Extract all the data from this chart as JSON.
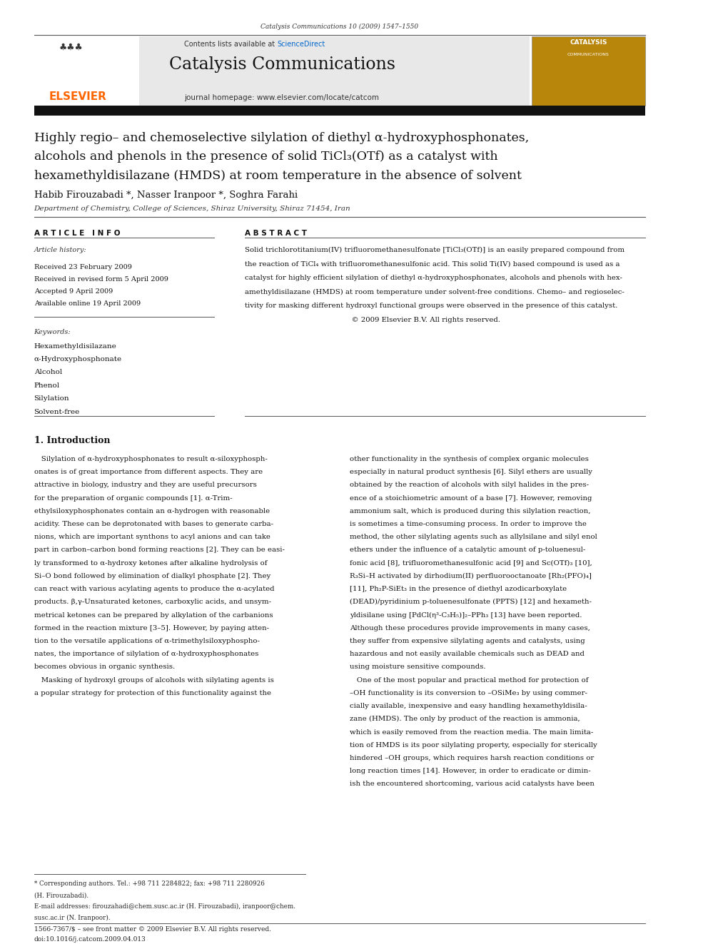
{
  "page_width": 9.92,
  "page_height": 13.23,
  "bg_color": "#ffffff",
  "journal_ref": "Catalysis Communications 10 (2009) 1547–1550",
  "header_bg": "#e8e8e8",
  "sciencedirect_color": "#0066cc",
  "journal_name": "Catalysis Communications",
  "journal_homepage": "journal homepage: www.elsevier.com/locate/catcom",
  "elsevier_color": "#ff6600",
  "title_line1": "Highly regio– and chemoselective silylation of diethyl α-hydroxyphosphonates,",
  "title_line2": "alcohols and phenols in the presence of solid TiCl₃(OTf) as a catalyst with",
  "title_line3": "hexamethyldisilazane (HMDS) at room temperature in the absence of solvent",
  "authors": "Habib Firouzabadi *, Nasser Iranpoor *, Soghra Farahi",
  "affiliation": "Department of Chemistry, College of Sciences, Shiraz University, Shiraz 71454, Iran",
  "article_info_header": "A R T I C L E   I N F O",
  "abstract_header": "A B S T R A C T",
  "article_history_label": "Article history:",
  "history_lines": [
    "Received 23 February 2009",
    "Received in revised form 5 April 2009",
    "Accepted 9 April 2009",
    "Available online 19 April 2009"
  ],
  "keywords_label": "Keywords:",
  "keywords": [
    "Hexamethyldisilazane",
    "α-Hydroxyphosphonate",
    "Alcohol",
    "Phenol",
    "Silylation",
    "Solvent-free"
  ],
  "abstract_lines": [
    "Solid trichlorotitanium(IV) trifluoromethanesulfonate [TiCl₃(OTf)] is an easily prepared compound from",
    "the reaction of TiCl₄ with trifluoromethanesulfonic acid. This solid Ti(IV) based compound is used as a",
    "catalyst for highly efficient silylation of diethyl α-hydroxyphosphonates, alcohols and phenols with hex-",
    "amethyldisilazane (HMDS) at room temperature under solvent-free conditions. Chemo– and regioselec-",
    "tivity for masking different hydroxyl functional groups were observed in the presence of this catalyst.",
    "                                              © 2009 Elsevier B.V. All rights reserved."
  ],
  "intro_header": "1. Introduction",
  "intro_col1_lines": [
    "   Silylation of α-hydroxyphosphonates to result α-siloxyphosph-",
    "onates is of great importance from different aspects. They are",
    "attractive in biology, industry and they are useful precursors",
    "for the preparation of organic compounds [1]. α-Trim-",
    "ethylsiloxyphosphonates contain an α-hydrogen with reasonable",
    "acidity. These can be deprotonated with bases to generate carba-",
    "nions, which are important synthons to acyl anions and can take",
    "part in carbon–carbon bond forming reactions [2]. They can be easi-",
    "ly transformed to α-hydroxy ketones after alkaline hydrolysis of",
    "Si–O bond followed by elimination of dialkyl phosphate [2]. They",
    "can react with various acylating agents to produce the α-acylated",
    "products. β,γ-Unsaturated ketones, carboxylic acids, and unsym-",
    "metrical ketones can be prepared by alkylation of the carbanions",
    "formed in the reaction mixture [3–5]. However, by paying atten-",
    "tion to the versatile applications of α-trimethylsiloxyphospho-",
    "nates, the importance of silylation of α-hydroxyphosphonates",
    "becomes obvious in organic synthesis.",
    "   Masking of hydroxyl groups of alcohols with silylating agents is",
    "a popular strategy for protection of this functionality against the"
  ],
  "intro_col2_lines": [
    "other functionality in the synthesis of complex organic molecules",
    "especially in natural product synthesis [6]. Silyl ethers are usually",
    "obtained by the reaction of alcohols with silyl halides in the pres-",
    "ence of a stoichiometric amount of a base [7]. However, removing",
    "ammonium salt, which is produced during this silylation reaction,",
    "is sometimes a time-consuming process. In order to improve the",
    "method, the other silylating agents such as allylsilane and silyl enol",
    "ethers under the influence of a catalytic amount of p-toluenesul-",
    "fonic acid [8], trifluoromethanesulfonic acid [9] and Sc(OTf)₃ [10],",
    "R₃Si–H activated by dirhodium(II) perfluorooctanoate [Rh₂(PFO)₄]",
    "[11], Ph₂P-SiEt₃ in the presence of diethyl azodicarboxylate",
    "(DEAD)/pyridinium p-toluenesulfonate (PPTS) [12] and hexameth-",
    "yldisilane using [PdCl(η³-C₃H₅)]₂–PPh₃ [13] have been reported.",
    "Although these procedures provide improvements in many cases,",
    "they suffer from expensive silylating agents and catalysts, using",
    "hazardous and not easily available chemicals such as DEAD and",
    "using moisture sensitive compounds.",
    "   One of the most popular and practical method for protection of",
    "–OH functionality is its conversion to –OSiMe₃ by using commer-",
    "cially available, inexpensive and easy handling hexamethyldisila-",
    "zane (HMDS). The only by product of the reaction is ammonia,",
    "which is easily removed from the reaction media. The main limita-",
    "tion of HMDS is its poor silylating property, especially for sterically",
    "hindered –OH groups, which requires harsh reaction conditions or",
    "long reaction times [14]. However, in order to eradicate or dimin-",
    "ish the encountered shortcoming, various acid catalysts have been"
  ],
  "footnote_lines": [
    "* Corresponding authors. Tel.: +98 711 2284822; fax: +98 711 2280926",
    "(H. Firouzabadi).",
    "E-mail addresses: firouzahadi@chem.susc.ac.ir (H. Firouzabadi), iranpoor@chem.",
    "susc.ac.ir (N. Iranpoor)."
  ],
  "issn_line": "1566-7367/$ – see front matter © 2009 Elsevier B.V. All rights reserved.",
  "doi_line": "doi:10.1016/j.catcom.2009.04.013"
}
